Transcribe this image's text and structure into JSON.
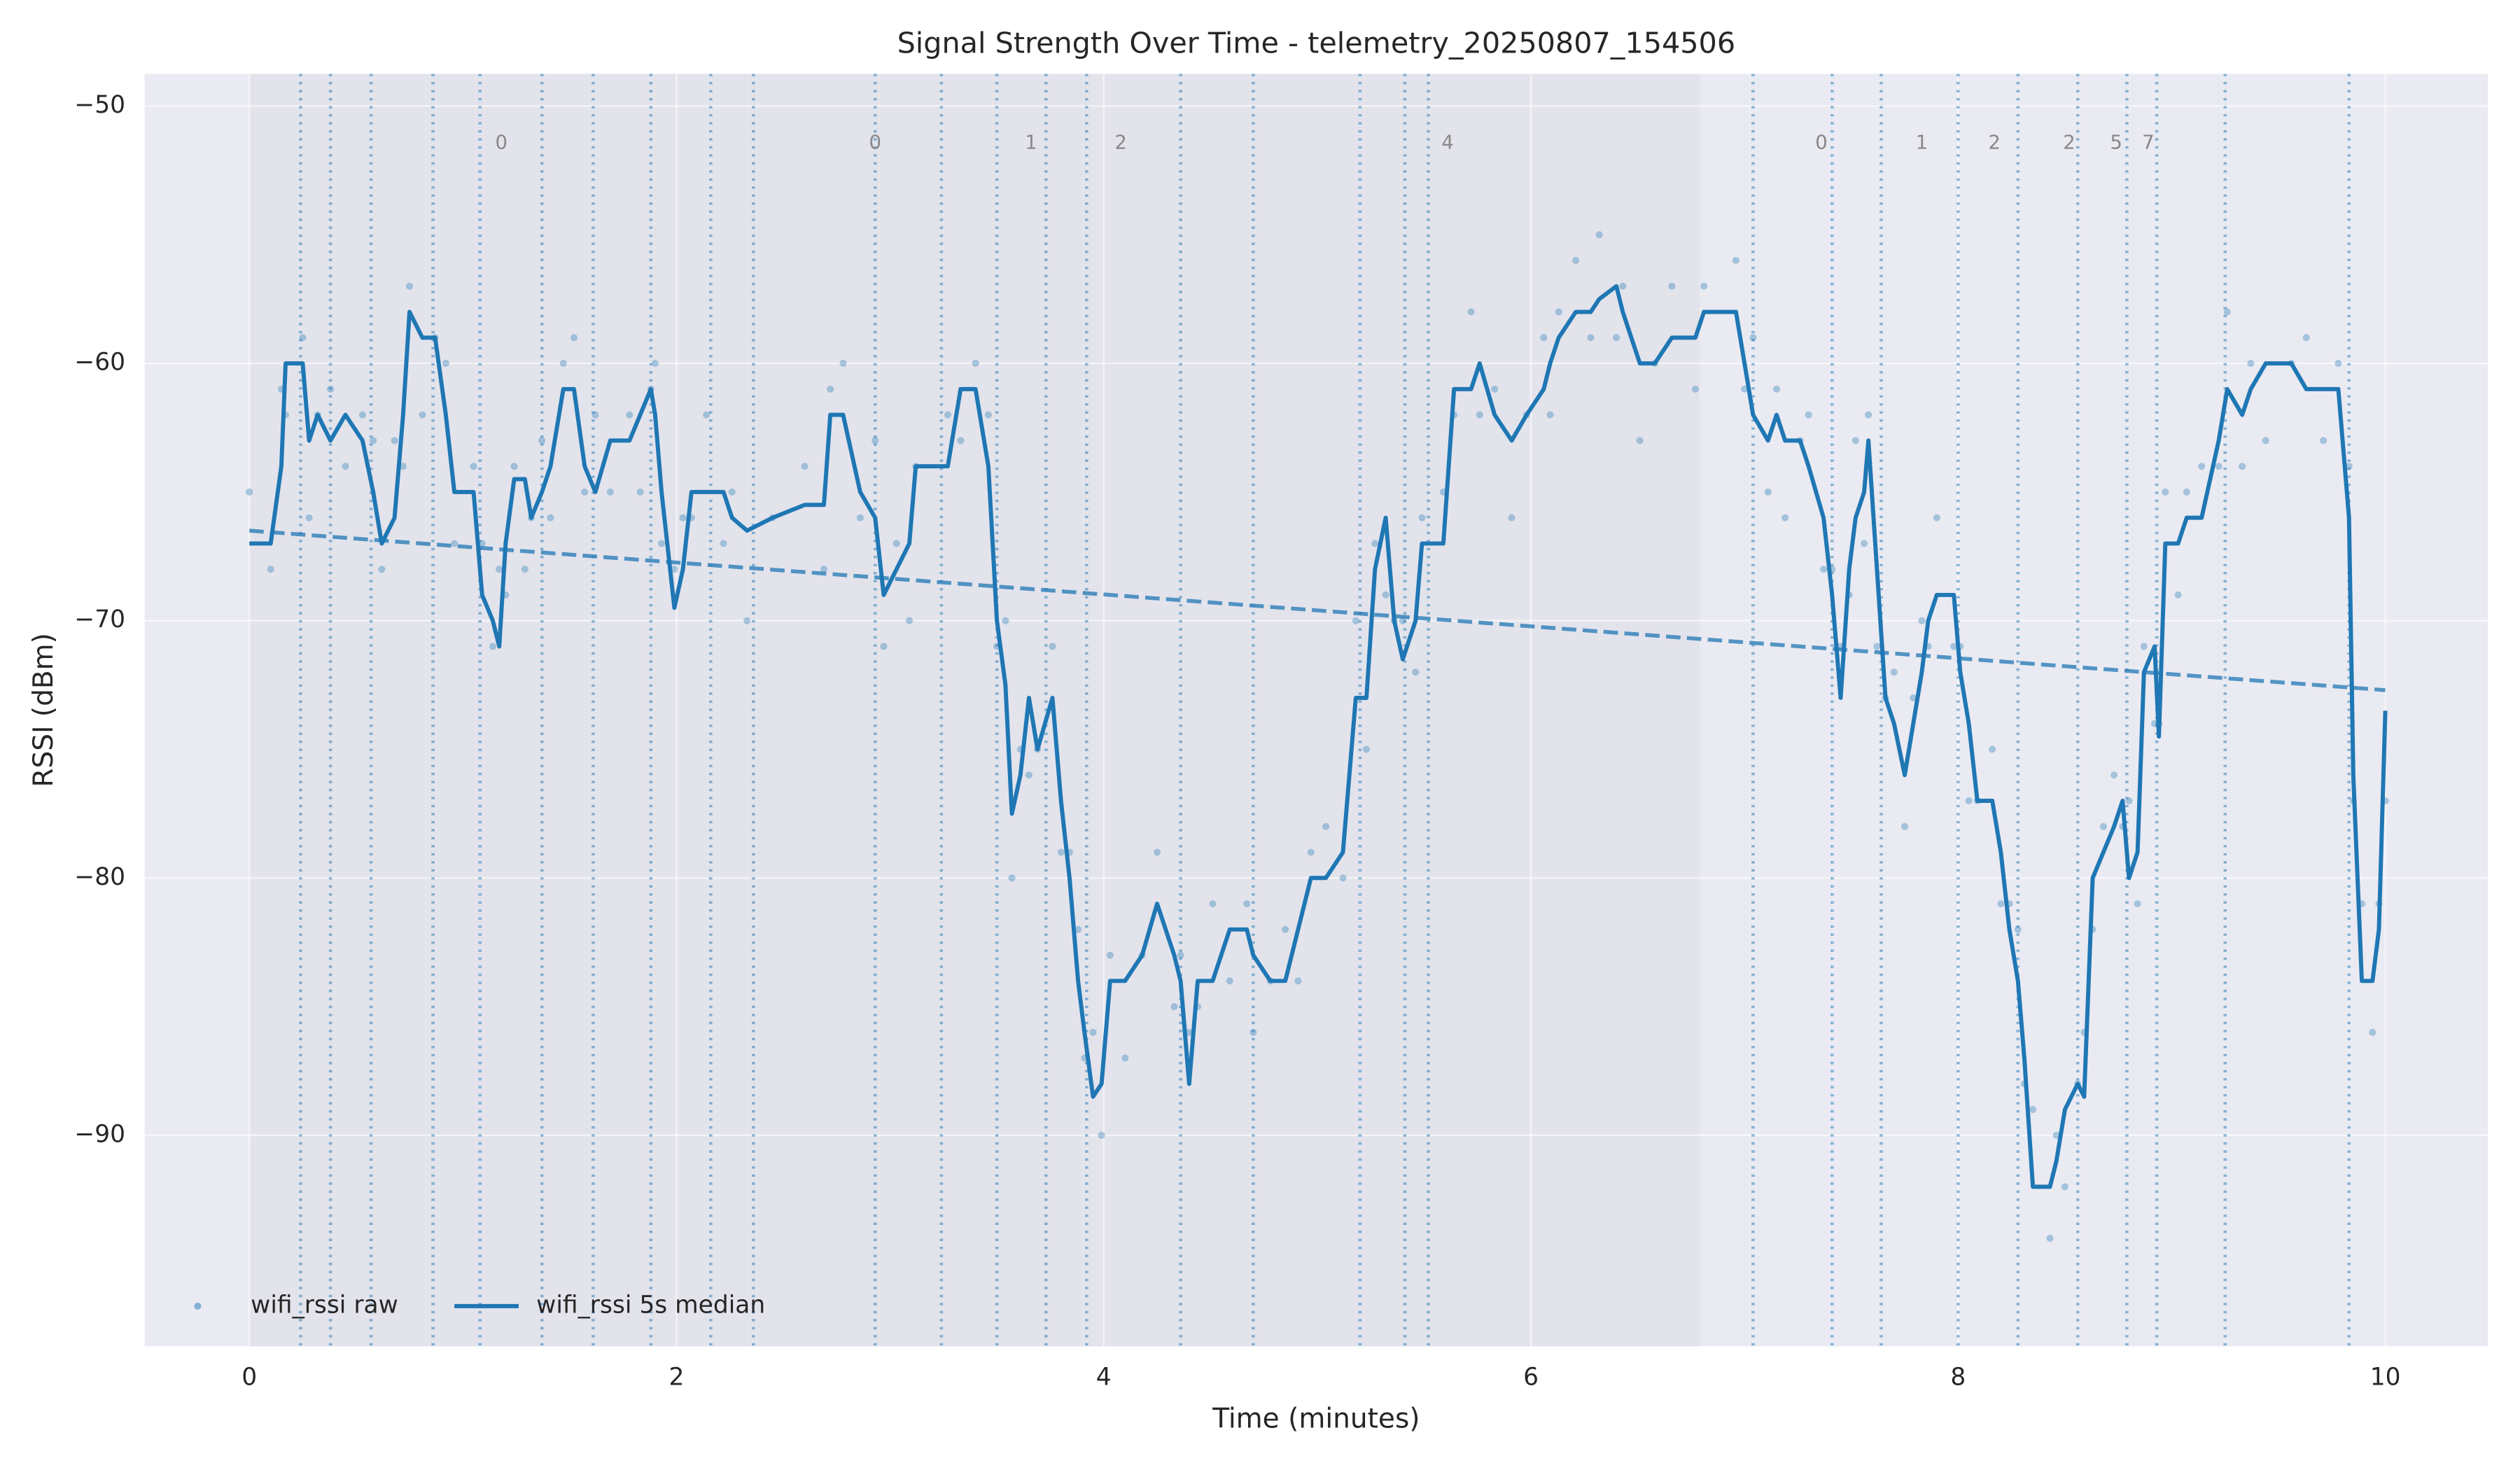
{
  "chart_data": {
    "type": "line",
    "title": "Signal Strength Over Time - telemetry_20250807_154506",
    "xlabel": "Time (minutes)",
    "ylabel": "RSSI (dBm)",
    "xlim": [
      -0.49,
      10.48
    ],
    "ylim": [
      -98.2,
      -48.75
    ],
    "xticks": [
      0,
      2,
      4,
      6,
      8,
      10
    ],
    "yticks": [
      {
        "value": -50,
        "label": "−50"
      },
      {
        "value": -60,
        "label": "−60"
      },
      {
        "value": -70,
        "label": "−70"
      },
      {
        "value": -80,
        "label": "−80"
      },
      {
        "value": -90,
        "label": "−90"
      }
    ],
    "grid": true,
    "legend": "lower left",
    "background": "#eaeaf2",
    "shaded_spans": [
      {
        "x": [
          0,
          6.79
        ],
        "color": "#e3e3ec"
      }
    ],
    "event_lines": {
      "color": "#1f77b4",
      "x": [
        0.24,
        0.38,
        0.57,
        0.86,
        1.08,
        1.37,
        1.61,
        1.88,
        2.16,
        2.36,
        2.93,
        3.24,
        3.5,
        3.73,
        3.92,
        4.36,
        4.7,
        5.2,
        5.41,
        5.52,
        7.04,
        7.41,
        7.64,
        8.0,
        8.28,
        8.56,
        8.79,
        8.93,
        9.25,
        9.83
      ]
    },
    "annotations": [
      {
        "x": 1.18,
        "text": "0"
      },
      {
        "x": 2.93,
        "text": "0"
      },
      {
        "x": 3.66,
        "text": "1"
      },
      {
        "x": 4.08,
        "text": "2"
      },
      {
        "x": 5.61,
        "text": "4"
      },
      {
        "x": 7.36,
        "text": "0"
      },
      {
        "x": 7.83,
        "text": "1"
      },
      {
        "x": 8.17,
        "text": "2"
      },
      {
        "x": 8.52,
        "text": "2"
      },
      {
        "x": 8.74,
        "text": "5"
      },
      {
        "x": 8.89,
        "text": "7"
      }
    ],
    "trend": {
      "color": "#1f77b4",
      "x": [
        0,
        10
      ],
      "values": [
        -66.5,
        -72.7
      ]
    },
    "series": [
      {
        "name": "wifi_rssi raw",
        "kind": "scatter",
        "color": "#1f77b4",
        "x": [
          0.0,
          0.1,
          0.15,
          0.17,
          0.25,
          0.28,
          0.32,
          0.38,
          0.45,
          0.53,
          0.58,
          0.62,
          0.68,
          0.72,
          0.75,
          0.81,
          0.87,
          0.92,
          0.96,
          1.05,
          1.09,
          1.14,
          1.17,
          1.2,
          1.24,
          1.29,
          1.32,
          1.37,
          1.41,
          1.47,
          1.52,
          1.57,
          1.62,
          1.69,
          1.78,
          1.83,
          1.88,
          1.9,
          1.93,
          1.99,
          2.03,
          2.07,
          2.14,
          2.22,
          2.26,
          2.33,
          2.45,
          2.6,
          2.69,
          2.72,
          2.78,
          2.86,
          2.93,
          2.97,
          3.03,
          3.09,
          3.12,
          3.27,
          3.33,
          3.4,
          3.46,
          3.5,
          3.54,
          3.57,
          3.61,
          3.65,
          3.69,
          3.76,
          3.8,
          3.84,
          3.88,
          3.91,
          3.95,
          3.99,
          4.03,
          4.1,
          4.18,
          4.25,
          4.33,
          4.36,
          4.4,
          4.44,
          4.51,
          4.59,
          4.67,
          4.7,
          4.78,
          4.85,
          4.91,
          4.97,
          5.04,
          5.12,
          5.18,
          5.23,
          5.27,
          5.32,
          5.36,
          5.4,
          5.46,
          5.49,
          5.59,
          5.64,
          5.72,
          5.76,
          5.83,
          5.91,
          5.98,
          6.06,
          6.09,
          6.13,
          6.21,
          6.28,
          6.32,
          6.4,
          6.43,
          6.51,
          6.58,
          6.66,
          6.77,
          6.81,
          6.96,
          7.0,
          7.04,
          7.11,
          7.15,
          7.19,
          7.26,
          7.3,
          7.37,
          7.41,
          7.45,
          7.49,
          7.52,
          7.56,
          7.58,
          7.62,
          7.66,
          7.7,
          7.75,
          7.79,
          7.83,
          7.86,
          7.9,
          7.98,
          8.01,
          8.05,
          8.09,
          8.16,
          8.2,
          8.24,
          8.28,
          8.31,
          8.35,
          8.43,
          8.46,
          8.5,
          8.56,
          8.59,
          8.63,
          8.68,
          8.73,
          8.77,
          8.8,
          8.84,
          8.87,
          8.92,
          8.94,
          8.97,
          9.03,
          9.07,
          9.14,
          9.22,
          9.26,
          9.33,
          9.37,
          9.44,
          9.56,
          9.63,
          9.71,
          9.78,
          9.83,
          9.85,
          9.89,
          9.94,
          9.97,
          10.0
        ],
        "values": [
          -65,
          -68,
          -61,
          -62,
          -59,
          -66,
          -62,
          -61,
          -64,
          -62,
          -63,
          -68,
          -63,
          -64,
          -57,
          -62,
          -59,
          -60,
          -67,
          -64,
          -67,
          -71,
          -68,
          -69,
          -64,
          -68,
          -66,
          -63,
          -66,
          -60,
          -59,
          -65,
          -62,
          -65,
          -62,
          -65,
          -61,
          -60,
          -67,
          -68,
          -66,
          -66,
          -62,
          -67,
          -65,
          -70,
          -66,
          -64,
          -68,
          -61,
          -60,
          -66,
          -63,
          -71,
          -67,
          -70,
          -64,
          -62,
          -63,
          -60,
          -62,
          -71,
          -70,
          -80,
          -75,
          -76,
          -75,
          -71,
          -79,
          -79,
          -82,
          -87,
          -86,
          -90,
          -83,
          -87,
          -83,
          -79,
          -85,
          -83,
          -86,
          -85,
          -81,
          -84,
          -81,
          -86,
          -84,
          -82,
          -84,
          -79,
          -78,
          -80,
          -70,
          -75,
          -67,
          -69,
          -70,
          -70,
          -72,
          -66,
          -65,
          -62,
          -58,
          -62,
          -61,
          -66,
          -62,
          -59,
          -62,
          -58,
          -56,
          -59,
          -55,
          -59,
          -57,
          -63,
          -60,
          -57,
          -61,
          -57,
          -56,
          -61,
          -59,
          -65,
          -61,
          -66,
          -63,
          -62,
          -68,
          -68,
          -71,
          -69,
          -63,
          -67,
          -62,
          -71,
          -73,
          -72,
          -78,
          -73,
          -70,
          -71,
          -66,
          -71,
          -71,
          -77,
          -77,
          -75,
          -81,
          -81,
          -82,
          -88,
          -89,
          -94,
          -90,
          -92,
          -88,
          -86,
          -82,
          -78,
          -76,
          -78,
          -77,
          -81,
          -71,
          -74,
          -74,
          -65,
          -69,
          -65,
          -64,
          -64,
          -58,
          -64,
          -60,
          -63,
          -60,
          -59,
          -63,
          -60,
          -64,
          -77,
          -81,
          -86,
          -81,
          -77
        ]
      },
      {
        "name": "wifi_rssi 5s median",
        "kind": "line",
        "color": "#1f77b4",
        "x": [
          0.0,
          0.1,
          0.15,
          0.17,
          0.25,
          0.28,
          0.32,
          0.38,
          0.45,
          0.53,
          0.58,
          0.62,
          0.68,
          0.72,
          0.75,
          0.81,
          0.87,
          0.92,
          0.96,
          1.05,
          1.09,
          1.14,
          1.17,
          1.2,
          1.24,
          1.29,
          1.32,
          1.37,
          1.41,
          1.47,
          1.52,
          1.57,
          1.62,
          1.69,
          1.78,
          1.83,
          1.88,
          1.9,
          1.93,
          1.99,
          2.03,
          2.07,
          2.14,
          2.22,
          2.26,
          2.33,
          2.45,
          2.6,
          2.69,
          2.72,
          2.78,
          2.86,
          2.93,
          2.97,
          3.03,
          3.09,
          3.12,
          3.27,
          3.33,
          3.4,
          3.46,
          3.5,
          3.54,
          3.57,
          3.61,
          3.65,
          3.69,
          3.76,
          3.8,
          3.84,
          3.88,
          3.91,
          3.95,
          3.99,
          4.03,
          4.1,
          4.18,
          4.25,
          4.33,
          4.36,
          4.4,
          4.44,
          4.51,
          4.59,
          4.67,
          4.7,
          4.78,
          4.85,
          4.91,
          4.97,
          5.04,
          5.12,
          5.18,
          5.23,
          5.27,
          5.32,
          5.36,
          5.4,
          5.46,
          5.49,
          5.59,
          5.64,
          5.72,
          5.76,
          5.83,
          5.91,
          5.98,
          6.06,
          6.09,
          6.13,
          6.21,
          6.28,
          6.32,
          6.4,
          6.43,
          6.51,
          6.58,
          6.66,
          6.77,
          6.81,
          6.96,
          7.0,
          7.04,
          7.11,
          7.15,
          7.19,
          7.26,
          7.3,
          7.37,
          7.41,
          7.45,
          7.49,
          7.52,
          7.56,
          7.58,
          7.62,
          7.66,
          7.7,
          7.75,
          7.79,
          7.83,
          7.86,
          7.9,
          7.98,
          8.01,
          8.05,
          8.09,
          8.16,
          8.2,
          8.24,
          8.28,
          8.31,
          8.35,
          8.43,
          8.46,
          8.5,
          8.56,
          8.59,
          8.63,
          8.68,
          8.73,
          8.77,
          8.8,
          8.84,
          8.87,
          8.92,
          8.94,
          8.97,
          9.03,
          9.07,
          9.14,
          9.22,
          9.26,
          9.33,
          9.37,
          9.44,
          9.56,
          9.63,
          9.71,
          9.78,
          9.83,
          9.85,
          9.89,
          9.94,
          9.97,
          10.0
        ],
        "values": [
          -67,
          -67,
          -64,
          -60,
          -60,
          -63,
          -62,
          -63,
          -62,
          -63,
          -65,
          -67,
          -66,
          -62,
          -58,
          -59,
          -59,
          -62,
          -65,
          -65,
          -69,
          -70,
          -71,
          -67,
          -64.5,
          -64.5,
          -66,
          -65,
          -64,
          -61,
          -61,
          -64,
          -65,
          -63,
          -63,
          -62,
          -61,
          -62,
          -65,
          -69.5,
          -68,
          -65,
          -65,
          -65,
          -66,
          -66.5,
          -66,
          -65.5,
          -65.5,
          -62,
          -62,
          -65,
          -66,
          -69,
          -68,
          -67,
          -64,
          -64,
          -61,
          -61,
          -64,
          -70,
          -72.5,
          -77.5,
          -76,
          -73,
          -75,
          -73,
          -77,
          -80,
          -84,
          -86,
          -88.5,
          -88,
          -84,
          -84,
          -83,
          -81,
          -83,
          -84,
          -88,
          -84,
          -84,
          -82,
          -82,
          -83,
          -84,
          -84,
          -82,
          -80,
          -80,
          -79,
          -73,
          -73,
          -68,
          -66,
          -70,
          -71.5,
          -70,
          -67,
          -67,
          -61,
          -61,
          -60,
          -62,
          -63,
          -62,
          -61,
          -60,
          -59,
          -58,
          -58,
          -57.5,
          -57,
          -58,
          -60,
          -60,
          -59,
          -59,
          -58,
          -58,
          -60,
          -62,
          -63,
          -62,
          -63,
          -63,
          -64,
          -66,
          -69,
          -73,
          -68,
          -66,
          -65,
          -63,
          -68,
          -73,
          -74,
          -76,
          -74,
          -72,
          -70,
          -69,
          -69,
          -72,
          -74,
          -77,
          -77,
          -79,
          -82,
          -84,
          -87,
          -92,
          -92,
          -91,
          -89,
          -88,
          -88.5,
          -80,
          -79,
          -78,
          -77,
          -80,
          -79,
          -72,
          -71,
          -74.5,
          -67,
          -67,
          -66,
          -66,
          -63,
          -61,
          -62,
          -61,
          -60,
          -60,
          -61,
          -61,
          -61,
          -66,
          -76,
          -84,
          -84,
          -82,
          -73.5
        ]
      }
    ]
  }
}
